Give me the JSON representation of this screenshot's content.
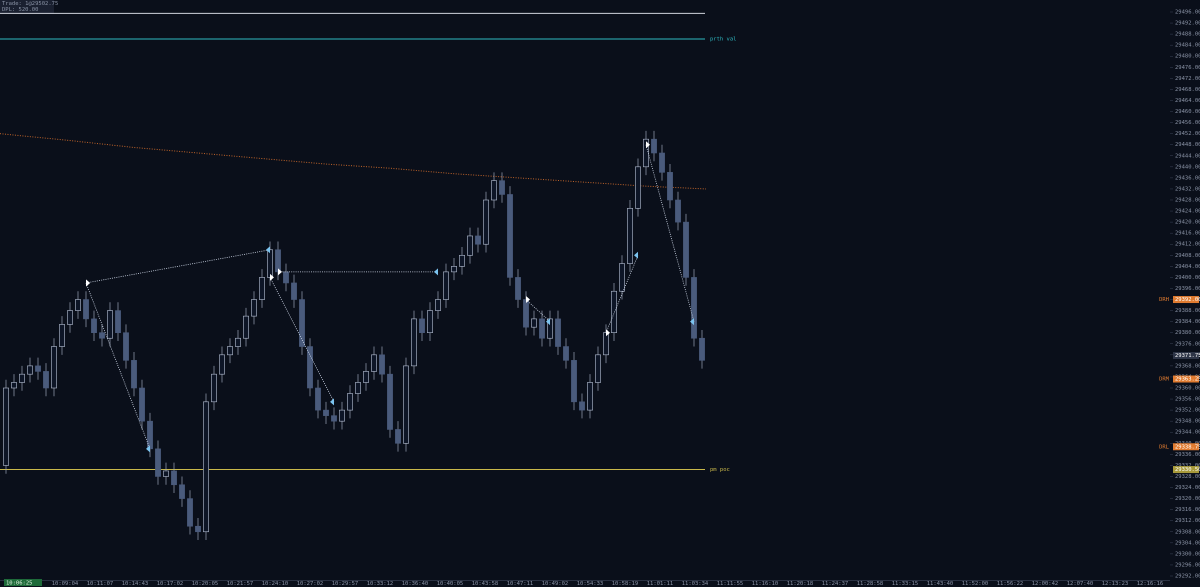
{
  "chart_data": {
    "type": "candlestick",
    "header": [
      "Trade: 1@29502.75",
      "DPL: 520.00"
    ],
    "footer_tag": "10:06:25",
    "up_color": "#0d1526",
    "up_stroke": "#b8c2d6",
    "down_color": "#4a5b7c",
    "wick_color": "#9aa4b8",
    "open": [
      29332,
      29360,
      29362,
      29365,
      29368,
      29366,
      29360,
      29375,
      29383,
      29388,
      29392,
      29385,
      29380,
      29378,
      29388,
      29380,
      29370,
      29360,
      29348,
      29338,
      29328,
      29330,
      29325,
      29320,
      29310,
      29308,
      29355,
      29365,
      29372,
      29375,
      29378,
      29386,
      29392,
      29400,
      29410,
      29402,
      29398,
      29392,
      29375,
      29360,
      29352,
      29350,
      29348,
      29352,
      29358,
      29362,
      29366,
      29372,
      29365,
      29345,
      29340,
      29368,
      29385,
      29380,
      29388,
      29392,
      29402,
      29404,
      29408,
      29415,
      29412,
      29428,
      29435,
      29430,
      29400,
      29392,
      29382,
      29385,
      29378,
      29385,
      29375,
      29370,
      29355,
      29352,
      29362,
      29372,
      29380,
      29395,
      29405,
      29425,
      29440,
      29450,
      29445,
      29438,
      29428,
      29420,
      29400,
      29378
    ],
    "high": [
      29363,
      29365,
      29368,
      29371,
      29371,
      29369,
      29378,
      29386,
      29391,
      29395,
      29395,
      29388,
      29383,
      29391,
      29391,
      29383,
      29373,
      29363,
      29351,
      29341,
      29333,
      29333,
      29328,
      29323,
      29313,
      29358,
      29368,
      29375,
      29378,
      29381,
      29389,
      29395,
      29403,
      29413,
      29413,
      29405,
      29401,
      29395,
      29378,
      29363,
      29355,
      29353,
      29355,
      29361,
      29365,
      29369,
      29375,
      29375,
      29368,
      29348,
      29371,
      29388,
      29388,
      29391,
      29395,
      29405,
      29407,
      29411,
      29418,
      29418,
      29431,
      29438,
      29438,
      29433,
      29403,
      29395,
      29388,
      29388,
      29388,
      29388,
      29378,
      29373,
      29358,
      29365,
      29375,
      29383,
      29398,
      29408,
      29428,
      29443,
      29453,
      29453,
      29448,
      29441,
      29431,
      29423,
      29403,
      29381
    ],
    "low": [
      29329,
      29357,
      29359,
      29362,
      29363,
      29357,
      29357,
      29372,
      29380,
      29385,
      29382,
      29377,
      29375,
      29375,
      29377,
      29367,
      29357,
      29345,
      29335,
      29325,
      29325,
      29322,
      29317,
      29307,
      29305,
      29305,
      29352,
      29362,
      29369,
      29372,
      29375,
      29383,
      29389,
      29397,
      29399,
      29395,
      29389,
      29372,
      29357,
      29349,
      29347,
      29345,
      29345,
      29349,
      29355,
      29359,
      29363,
      29362,
      29342,
      29337,
      29337,
      29365,
      29377,
      29377,
      29385,
      29389,
      29399,
      29401,
      29405,
      29409,
      29409,
      29425,
      29427,
      29397,
      29389,
      29379,
      29379,
      29375,
      29375,
      29372,
      29367,
      29352,
      29349,
      29349,
      29359,
      29369,
      29377,
      29392,
      29402,
      29422,
      29437,
      29442,
      29435,
      29425,
      29417,
      29397,
      29375,
      29367
    ],
    "close": [
      29360,
      29362,
      29365,
      29368,
      29366,
      29360,
      29375,
      29383,
      29388,
      29392,
      29385,
      29380,
      29378,
      29388,
      29380,
      29370,
      29360,
      29348,
      29338,
      29328,
      29330,
      29325,
      29320,
      29310,
      29308,
      29355,
      29365,
      29372,
      29375,
      29378,
      29386,
      29392,
      29400,
      29410,
      29402,
      29398,
      29392,
      29375,
      29360,
      29352,
      29350,
      29348,
      29352,
      29358,
      29362,
      29366,
      29372,
      29365,
      29345,
      29340,
      29368,
      29385,
      29380,
      29388,
      29392,
      29402,
      29404,
      29408,
      29415,
      29412,
      29428,
      29435,
      29430,
      29400,
      29392,
      29382,
      29385,
      29378,
      29385,
      29375,
      29370,
      29355,
      29352,
      29362,
      29372,
      29380,
      29395,
      29405,
      29425,
      29440,
      29450,
      29445,
      29438,
      29428,
      29420,
      29400,
      29378,
      29370
    ],
    "vwap": {
      "color": "#c0642a",
      "x": [
        -0.75,
        8,
        16,
        24,
        32,
        40,
        48,
        56,
        64,
        72,
        80,
        87.5
      ],
      "values": [
        29452,
        29449.5,
        29447,
        29445,
        29443,
        29441,
        29439.5,
        29437.5,
        29436,
        29434.5,
        29433,
        29432
      ]
    },
    "trades": [
      {
        "entry_index": 10,
        "entry_price": 29398,
        "exit_index": 18,
        "exit_price": 29338
      },
      {
        "entry_index": 10,
        "entry_price": 29398,
        "exit_index": 33,
        "exit_price": 29410
      },
      {
        "entry_index": 33,
        "entry_price": 29400,
        "exit_index": 41,
        "exit_price": 29355
      },
      {
        "entry_index": 34,
        "entry_price": 29402,
        "exit_index": 54,
        "exit_price": 29402
      },
      {
        "entry_index": 65,
        "entry_price": 29392,
        "exit_index": 68,
        "exit_price": 29384
      },
      {
        "entry_index": 75,
        "entry_price": 29380,
        "exit_index": 79,
        "exit_price": 29408
      },
      {
        "entry_index": 80,
        "entry_price": 29448,
        "exit_index": 86,
        "exit_price": 29384
      }
    ],
    "entry_color": "#ffffff",
    "exit_color": "#7cc4f0",
    "lines": [
      {
        "value": 29495.5,
        "color": "#d0d4dc"
      },
      {
        "name": "prth val",
        "value": 29486.25,
        "color": "#2fb8c0"
      },
      {
        "name": "pm poc",
        "value": 29330.5,
        "color": "#c9b84a"
      }
    ],
    "price_tags": [
      {
        "name": "DRH",
        "value": 29392,
        "label": "29392.00",
        "color": "#e07b30"
      },
      {
        "value": 29371.75,
        "label": "29371.75",
        "color": "#2e3547"
      },
      {
        "name": "DRM",
        "value": 29363.25,
        "label": "29363.25",
        "color": "#e07b30"
      },
      {
        "name": "DRL",
        "value": 29338.75,
        "label": "29338.75",
        "color": "#e07b30"
      },
      {
        "value": 29330.5,
        "label": "29330.50",
        "color": "#a89a3a"
      }
    ],
    "xlim": [
      -0.75,
      145.5
    ],
    "ylim": [
      29290,
      29500
    ],
    "xticks": [
      {
        "value": 7.375,
        "label": "10:09:04"
      },
      {
        "value": 11.75,
        "label": "10:11:07"
      },
      {
        "value": 16.125,
        "label": "10:14:43"
      },
      {
        "value": 20.5,
        "label": "10:17:02"
      },
      {
        "value": 24.875,
        "label": "10:20:05"
      },
      {
        "value": 29.25,
        "label": "10:21:57"
      },
      {
        "value": 33.625,
        "label": "10:24:10"
      },
      {
        "value": 38,
        "label": "10:27:02"
      },
      {
        "value": 42.375,
        "label": "10:29:57"
      },
      {
        "value": 46.75,
        "label": "10:33:12"
      },
      {
        "value": 51.125,
        "label": "10:36:40"
      },
      {
        "value": 55.5,
        "label": "10:40:05"
      },
      {
        "value": 59.875,
        "label": "10:43:58"
      },
      {
        "value": 64.25,
        "label": "10:47:11"
      },
      {
        "value": 68.625,
        "label": "10:49:02"
      },
      {
        "value": 73,
        "label": "10:54:33"
      },
      {
        "value": 77.375,
        "label": "10:58:19"
      },
      {
        "value": 81.75,
        "label": "11:01:11"
      },
      {
        "value": 86.125,
        "label": "11:03:34"
      },
      {
        "value": 90.5,
        "label": "11:11:55"
      },
      {
        "value": 94.875,
        "label": "11:16:10"
      },
      {
        "value": 99.25,
        "label": "11:20:18"
      },
      {
        "value": 103.625,
        "label": "11:24:37"
      },
      {
        "value": 108,
        "label": "11:28:58"
      },
      {
        "value": 112.375,
        "label": "11:33:15"
      },
      {
        "value": 116.75,
        "label": "11:43:40"
      },
      {
        "value": 121.125,
        "label": "11:52:00"
      },
      {
        "value": 125.5,
        "label": "11:56:22"
      },
      {
        "value": 129.875,
        "label": "12:00:42"
      },
      {
        "value": 134.25,
        "label": "12:07:40"
      },
      {
        "value": 138.625,
        "label": "12:13:23"
      },
      {
        "value": 143,
        "label": "12:16:16"
      }
    ],
    "yticks": [
      {
        "value": 29292,
        "label": "29292.00"
      },
      {
        "value": 29296,
        "label": "29296.00"
      },
      {
        "value": 29300,
        "label": "29300.00"
      },
      {
        "value": 29304,
        "label": "29304.00"
      },
      {
        "value": 29308,
        "label": "29308.00"
      },
      {
        "value": 29312,
        "label": "29312.00"
      },
      {
        "value": 29316,
        "label": "29316.00"
      },
      {
        "value": 29320,
        "label": "29320.00"
      },
      {
        "value": 29324,
        "label": "29324.00"
      },
      {
        "value": 29328,
        "label": "29328.00"
      },
      {
        "value": 29332,
        "label": "29332.00"
      },
      {
        "value": 29336,
        "label": "29336.00"
      },
      {
        "value": 29340,
        "label": "29340.00"
      },
      {
        "value": 29344,
        "label": "29344.00"
      },
      {
        "value": 29348,
        "label": "29348.00"
      },
      {
        "value": 29352,
        "label": "29352.00"
      },
      {
        "value": 29356,
        "label": "29356.00"
      },
      {
        "value": 29360,
        "label": "29360.00"
      },
      {
        "value": 29364,
        "label": "29364.00"
      },
      {
        "value": 29368,
        "label": "29368.00"
      },
      {
        "value": 29372,
        "label": "29372.00"
      },
      {
        "value": 29376,
        "label": "29376.00"
      },
      {
        "value": 29380,
        "label": "29380.00"
      },
      {
        "value": 29384,
        "label": "29384.00"
      },
      {
        "value": 29388,
        "label": "29388.00"
      },
      {
        "value": 29392,
        "label": "29392.00"
      },
      {
        "value": 29396,
        "label": "29396.00"
      },
      {
        "value": 29400,
        "label": "29400.00"
      },
      {
        "value": 29404,
        "label": "29404.00"
      },
      {
        "value": 29408,
        "label": "29408.00"
      },
      {
        "value": 29412,
        "label": "29412.00"
      },
      {
        "value": 29416,
        "label": "29416.00"
      },
      {
        "value": 29420,
        "label": "29420.00"
      },
      {
        "value": 29424,
        "label": "29424.00"
      },
      {
        "value": 29428,
        "label": "29428.00"
      },
      {
        "value": 29432,
        "label": "29432.00"
      },
      {
        "value": 29436,
        "label": "29436.00"
      },
      {
        "value": 29440,
        "label": "29440.00"
      },
      {
        "value": 29444,
        "label": "29444.00"
      },
      {
        "value": 29448,
        "label": "29448.00"
      },
      {
        "value": 29452,
        "label": "29452.00"
      },
      {
        "value": 29456,
        "label": "29456.00"
      },
      {
        "value": 29460,
        "label": "29460.00"
      },
      {
        "value": 29464,
        "label": "29464.00"
      },
      {
        "value": 29468,
        "label": "29468.00"
      },
      {
        "value": 29472,
        "label": "29472.00"
      },
      {
        "value": 29476,
        "label": "29476.00"
      },
      {
        "value": 29480,
        "label": "29480.00"
      },
      {
        "value": 29484,
        "label": "29484.00"
      },
      {
        "value": 29488,
        "label": "29488.00"
      },
      {
        "value": 29492,
        "label": "29492.00"
      },
      {
        "value": 29496,
        "label": "29496.00"
      }
    ]
  }
}
